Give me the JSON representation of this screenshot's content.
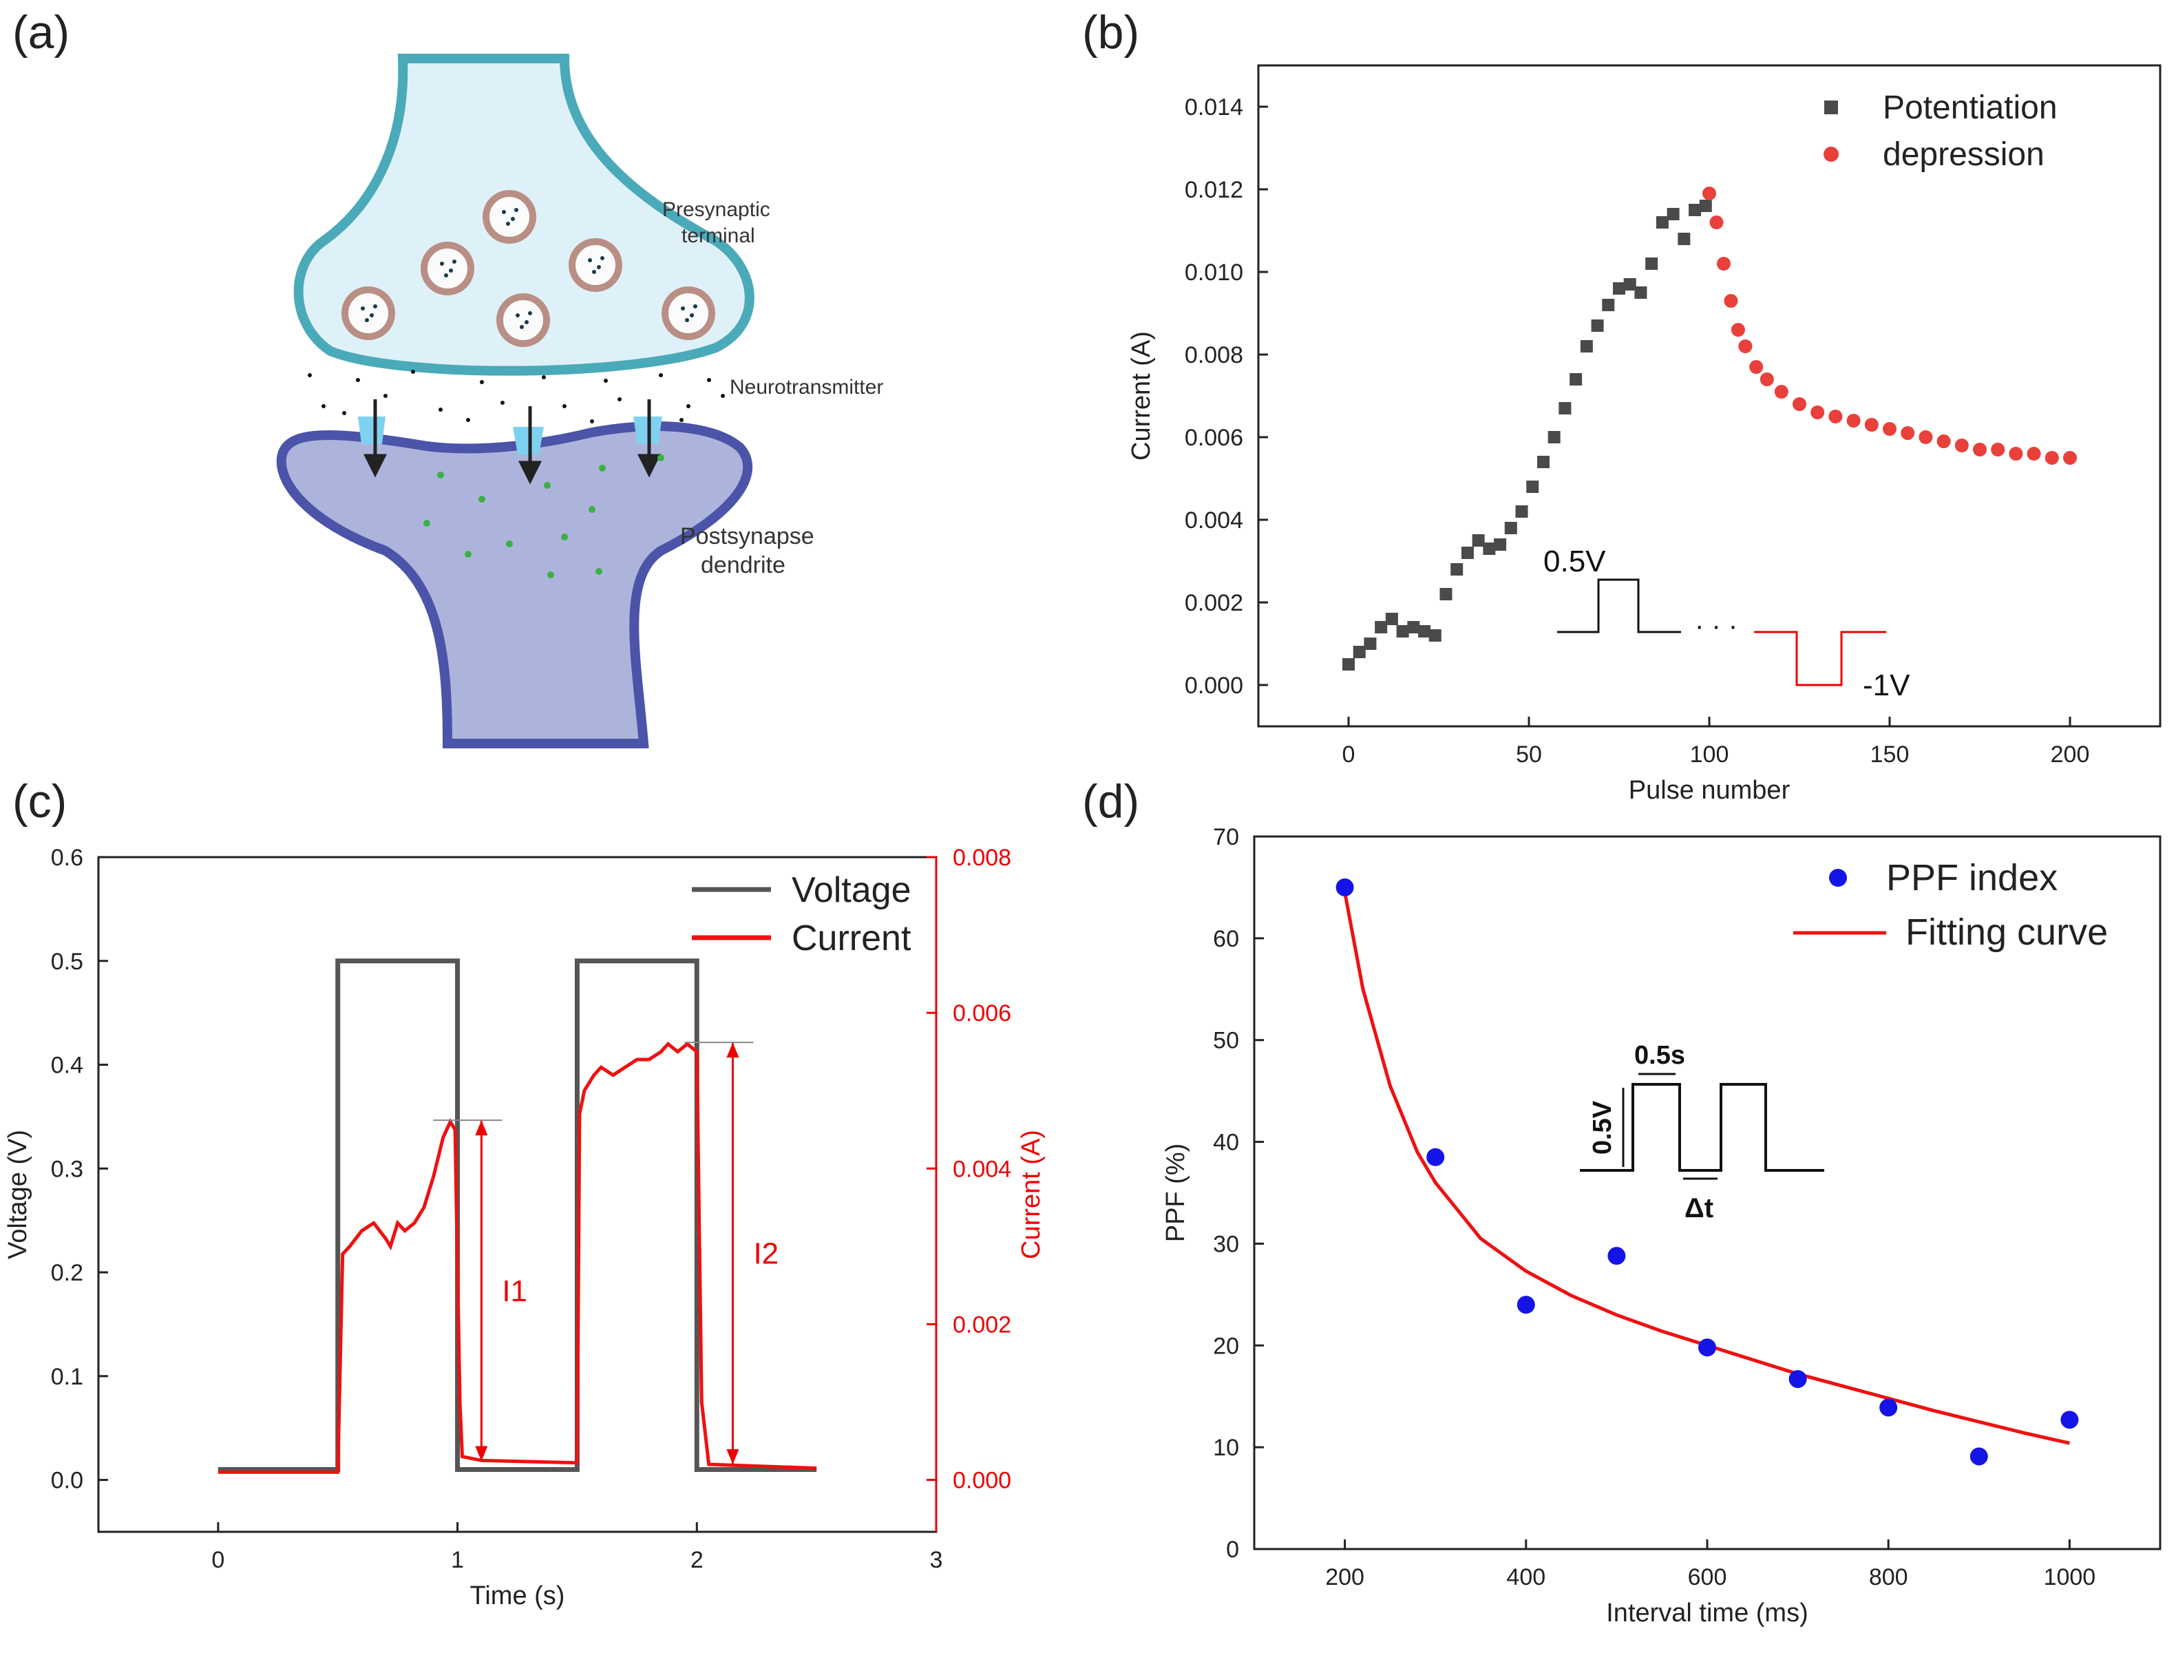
{
  "panels": {
    "a": {
      "label": "(a)",
      "text_presynaptic_1": "Presynaptic",
      "text_presynaptic_2": "terminal",
      "text_neurotransmitter": "Neurotransmitter",
      "text_post_1": "Postsynapse",
      "text_post_2": "dendrite",
      "colors": {
        "pre_fill": "#dff1f8",
        "pre_stroke": "#4aaab9",
        "post_fill": "#adb4dc",
        "post_stroke": "#4b54a8",
        "vesicle": "#b98e84",
        "dots": "#3cb043"
      }
    },
    "b": {
      "label": "(b)"
    },
    "c": {
      "label": "(c)"
    },
    "d": {
      "label": "(d)"
    }
  },
  "chart_data": [
    {
      "id": "b",
      "type": "scatter",
      "title": "",
      "xlabel": "Pulse number",
      "ylabel": "Current (A)",
      "xlim": [
        -25,
        225
      ],
      "ylim": [
        -0.001,
        0.015
      ],
      "xticks": [
        0,
        50,
        100,
        150,
        200
      ],
      "xtick_labels": [
        "0",
        "50",
        "100",
        "150",
        "200"
      ],
      "yticks": [
        0,
        0.002,
        0.004,
        0.006,
        0.008,
        0.01,
        0.012,
        0.014
      ],
      "ytick_labels": [
        "0.000",
        "0.002",
        "0.004",
        "0.006",
        "0.008",
        "0.010",
        "0.012",
        "0.014"
      ],
      "legend": {
        "position": "top-right",
        "entries": [
          "Potentiation",
          "depression"
        ]
      },
      "series": [
        {
          "name": "Potentiation",
          "marker": "square",
          "color": "#4a4a4a",
          "x": [
            0,
            3,
            6,
            9,
            12,
            15,
            18,
            21,
            24,
            27,
            30,
            33,
            36,
            39,
            42,
            45,
            48,
            51,
            54,
            57,
            60,
            63,
            66,
            69,
            72,
            75,
            78,
            81,
            84,
            87,
            90,
            93,
            96,
            99
          ],
          "y": [
            0.0005,
            0.0008,
            0.001,
            0.0014,
            0.0016,
            0.0013,
            0.0014,
            0.0013,
            0.0012,
            0.0022,
            0.0028,
            0.0032,
            0.0035,
            0.0033,
            0.0034,
            0.0038,
            0.0042,
            0.0048,
            0.0054,
            0.006,
            0.0067,
            0.0074,
            0.0082,
            0.0087,
            0.0092,
            0.0096,
            0.0097,
            0.0095,
            0.0102,
            0.0112,
            0.0114,
            0.0108,
            0.0115,
            0.0116
          ]
        },
        {
          "name": "depression",
          "marker": "circle",
          "color": "#e8403a",
          "x": [
            100,
            102,
            104,
            106,
            108,
            110,
            113,
            116,
            120,
            125,
            130,
            135,
            140,
            145,
            150,
            155,
            160,
            165,
            170,
            175,
            180,
            185,
            190,
            195,
            200
          ],
          "y": [
            0.0119,
            0.0112,
            0.0102,
            0.0093,
            0.0086,
            0.0082,
            0.0077,
            0.0074,
            0.0071,
            0.0068,
            0.0066,
            0.0065,
            0.0064,
            0.0063,
            0.0062,
            0.0061,
            0.006,
            0.0059,
            0.0058,
            0.0057,
            0.0057,
            0.0056,
            0.0056,
            0.0055,
            0.0055
          ]
        }
      ],
      "inset": {
        "label_pos": "0.5V",
        "label_neg": "-1V",
        "dots": "· · ·"
      }
    },
    {
      "id": "c",
      "type": "line",
      "title": "",
      "xlabel": "Time (s)",
      "ylabel": "Voltage (V)",
      "ylabel_right": "Current (A)",
      "xlim": [
        -0.5,
        3
      ],
      "ylim": [
        -0.05,
        0.6
      ],
      "ylim_right": [
        -0.000667,
        0.008
      ],
      "xticks": [
        0,
        1,
        2,
        3
      ],
      "xtick_labels": [
        "0",
        "1",
        "2",
        "3"
      ],
      "yticks": [
        0,
        0.1,
        0.2,
        0.3,
        0.4,
        0.5,
        0.6
      ],
      "ytick_labels": [
        "0.0",
        "0.1",
        "0.2",
        "0.3",
        "0.4",
        "0.5",
        "0.6"
      ],
      "yticks_right": [
        0,
        0.002,
        0.004,
        0.006,
        0.008
      ],
      "ytick_labels_right": [
        "0.000",
        "0.002",
        "0.004",
        "0.006",
        "0.008"
      ],
      "legend": {
        "position": "top-right",
        "entries": [
          "Voltage",
          "Current"
        ]
      },
      "series": [
        {
          "name": "Voltage",
          "axis": "left",
          "color": "#555555",
          "x": [
            0,
            0.5,
            0.5,
            1,
            1,
            1.5,
            1.5,
            2,
            2,
            2.5
          ],
          "y": [
            0.01,
            0.01,
            0.5,
            0.5,
            0.01,
            0.01,
            0.5,
            0.5,
            0.01,
            0.01
          ]
        },
        {
          "name": "Current",
          "axis": "right",
          "color": "#ee1111",
          "x": [
            0,
            0.5,
            0.52,
            0.55,
            0.6,
            0.65,
            0.7,
            0.72,
            0.75,
            0.78,
            0.82,
            0.86,
            0.9,
            0.94,
            0.97,
            0.99,
            1.01,
            1.02,
            1.1,
            1.5,
            1.51,
            1.53,
            1.57,
            1.6,
            1.65,
            1.7,
            1.75,
            1.8,
            1.85,
            1.88,
            1.92,
            1.96,
            2.0,
            2.02,
            2.05,
            2.5
          ],
          "y": [
            0.0001,
            0.0001,
            0.0029,
            0.003,
            0.0032,
            0.0033,
            0.0031,
            0.003,
            0.0033,
            0.0032,
            0.0033,
            0.0035,
            0.0039,
            0.0044,
            0.0046,
            0.0045,
            0.001,
            0.0003,
            0.00025,
            0.00022,
            0.0047,
            0.005,
            0.0052,
            0.0053,
            0.0052,
            0.0053,
            0.0054,
            0.0054,
            0.0055,
            0.0056,
            0.0055,
            0.0056,
            0.0055,
            0.001,
            0.0002,
            0.00015
          ]
        }
      ],
      "annotations": [
        {
          "label": "I1",
          "x": 1.1,
          "from_y": 0.00024,
          "to_y": 0.00462
        },
        {
          "label": "I2",
          "x": 2.15,
          "from_y": 0.0002,
          "to_y": 0.00562
        }
      ]
    },
    {
      "id": "d",
      "type": "scatter",
      "title": "",
      "xlabel": "Interval time (ms)",
      "ylabel": "PPF (%)",
      "xlim": [
        100,
        1100
      ],
      "ylim": [
        0,
        70
      ],
      "xticks": [
        200,
        400,
        600,
        800,
        1000
      ],
      "xtick_labels": [
        "200",
        "400",
        "600",
        "800",
        "1000"
      ],
      "yticks": [
        0,
        10,
        20,
        30,
        40,
        50,
        60,
        70
      ],
      "ytick_labels": [
        "0",
        "10",
        "20",
        "30",
        "40",
        "50",
        "60",
        "70"
      ],
      "legend": {
        "position": "top-right",
        "entries": [
          "PPF index",
          "Fitting curve"
        ]
      },
      "series": [
        {
          "name": "PPF index",
          "marker": "circle",
          "color": "#1414e6",
          "x": [
            200,
            300,
            400,
            500,
            600,
            700,
            800,
            900,
            1000
          ],
          "y": [
            65,
            38.5,
            24,
            28.8,
            19.8,
            16.7,
            13.9,
            9.1,
            12.7
          ]
        },
        {
          "name": "Fitting curve",
          "marker": "line",
          "color": "#ee1111",
          "x": [
            200,
            220,
            250,
            280,
            300,
            350,
            400,
            450,
            500,
            550,
            600,
            650,
            700,
            750,
            800,
            850,
            900,
            950,
            1000
          ],
          "y": [
            64.5,
            55,
            45.5,
            39,
            36,
            30.5,
            27.3,
            24.9,
            23,
            21.4,
            20,
            18.6,
            17.2,
            16,
            14.8,
            13.6,
            12.5,
            11.4,
            10.4
          ]
        }
      ],
      "inset": {
        "label_width": "0.5s",
        "label_voltage": "0.5V",
        "label_delta": "Δt"
      }
    }
  ]
}
